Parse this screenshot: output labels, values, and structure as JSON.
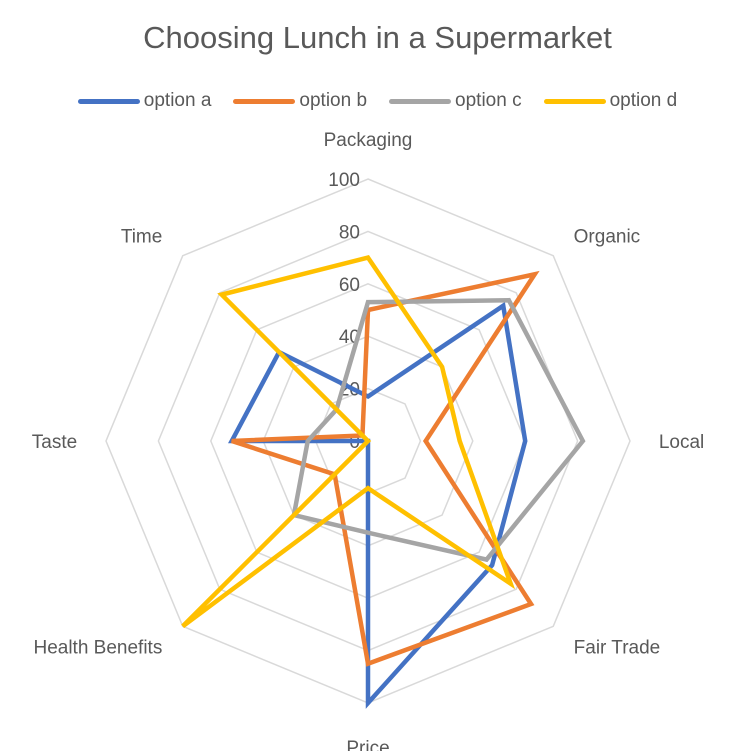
{
  "chart_data": {
    "type": "radar",
    "title": "Choosing Lunch in a Supermarket",
    "categories": [
      "Packaging",
      "Organic",
      "Local",
      "Fair Trade",
      "Price",
      "Health Benefits",
      "Taste",
      "Time"
    ],
    "r_ticks": [
      0,
      20,
      40,
      60,
      80,
      100
    ],
    "rlim": [
      0,
      100
    ],
    "grid": true,
    "legend_position": "top",
    "series": [
      {
        "name": "option a",
        "color": "#4472C4",
        "values": [
          17,
          73,
          60,
          67,
          100,
          0,
          52,
          48
        ]
      },
      {
        "name": "option b",
        "color": "#ED7D31",
        "values": [
          50,
          90,
          22,
          88,
          85,
          18,
          52,
          3
        ]
      },
      {
        "name": "option c",
        "color": "#A5A5A5",
        "values": [
          53,
          76,
          82,
          64,
          35,
          40,
          23,
          17
        ]
      },
      {
        "name": "option d",
        "color": "#FFC000",
        "values": [
          70,
          40,
          35,
          77,
          18,
          100,
          0,
          79
        ]
      }
    ]
  }
}
